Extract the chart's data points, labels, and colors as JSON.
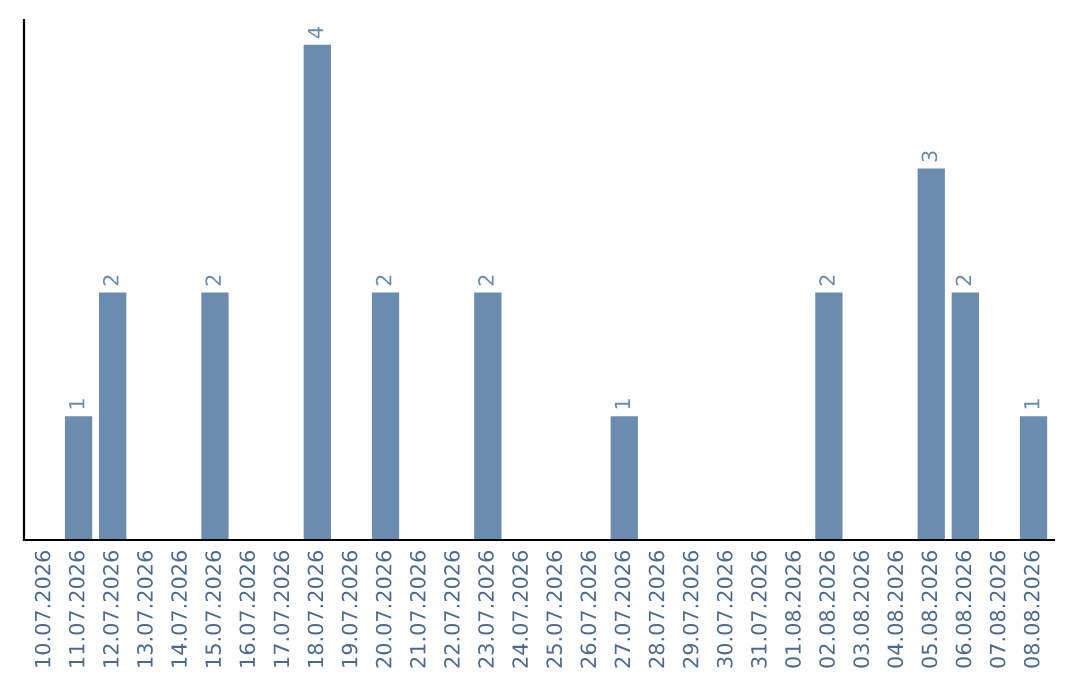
{
  "chart_data": {
    "type": "bar",
    "categories": [
      "10.07.2026",
      "11.07.2026",
      "12.07.2026",
      "13.07.2026",
      "14.07.2026",
      "15.07.2026",
      "16.07.2026",
      "17.07.2026",
      "18.07.2026",
      "19.07.2026",
      "20.07.2026",
      "21.07.2026",
      "22.07.2026",
      "23.07.2026",
      "24.07.2026",
      "25.07.2026",
      "26.07.2026",
      "27.07.2026",
      "28.07.2026",
      "29.07.2026",
      "30.07.2026",
      "31.07.2026",
      "01.08.2026",
      "02.08.2026",
      "03.08.2026",
      "04.08.2026",
      "05.08.2026",
      "06.08.2026",
      "07.08.2026",
      "08.08.2026"
    ],
    "values": [
      0,
      1,
      2,
      0,
      0,
      2,
      0,
      0,
      4,
      0,
      2,
      0,
      0,
      2,
      0,
      0,
      0,
      1,
      0,
      0,
      0,
      0,
      0,
      2,
      0,
      0,
      3,
      2,
      0,
      1
    ],
    "value_labels": [
      null,
      "1",
      "2",
      null,
      null,
      "2",
      null,
      null,
      "4",
      null,
      "2",
      null,
      null,
      "2",
      null,
      null,
      null,
      "1",
      null,
      null,
      null,
      null,
      null,
      "2",
      null,
      null,
      "3",
      "2",
      null,
      "1"
    ],
    "color": "#6a8caf",
    "ylim": [
      0,
      4.2
    ],
    "grid": false,
    "legend": false
  }
}
